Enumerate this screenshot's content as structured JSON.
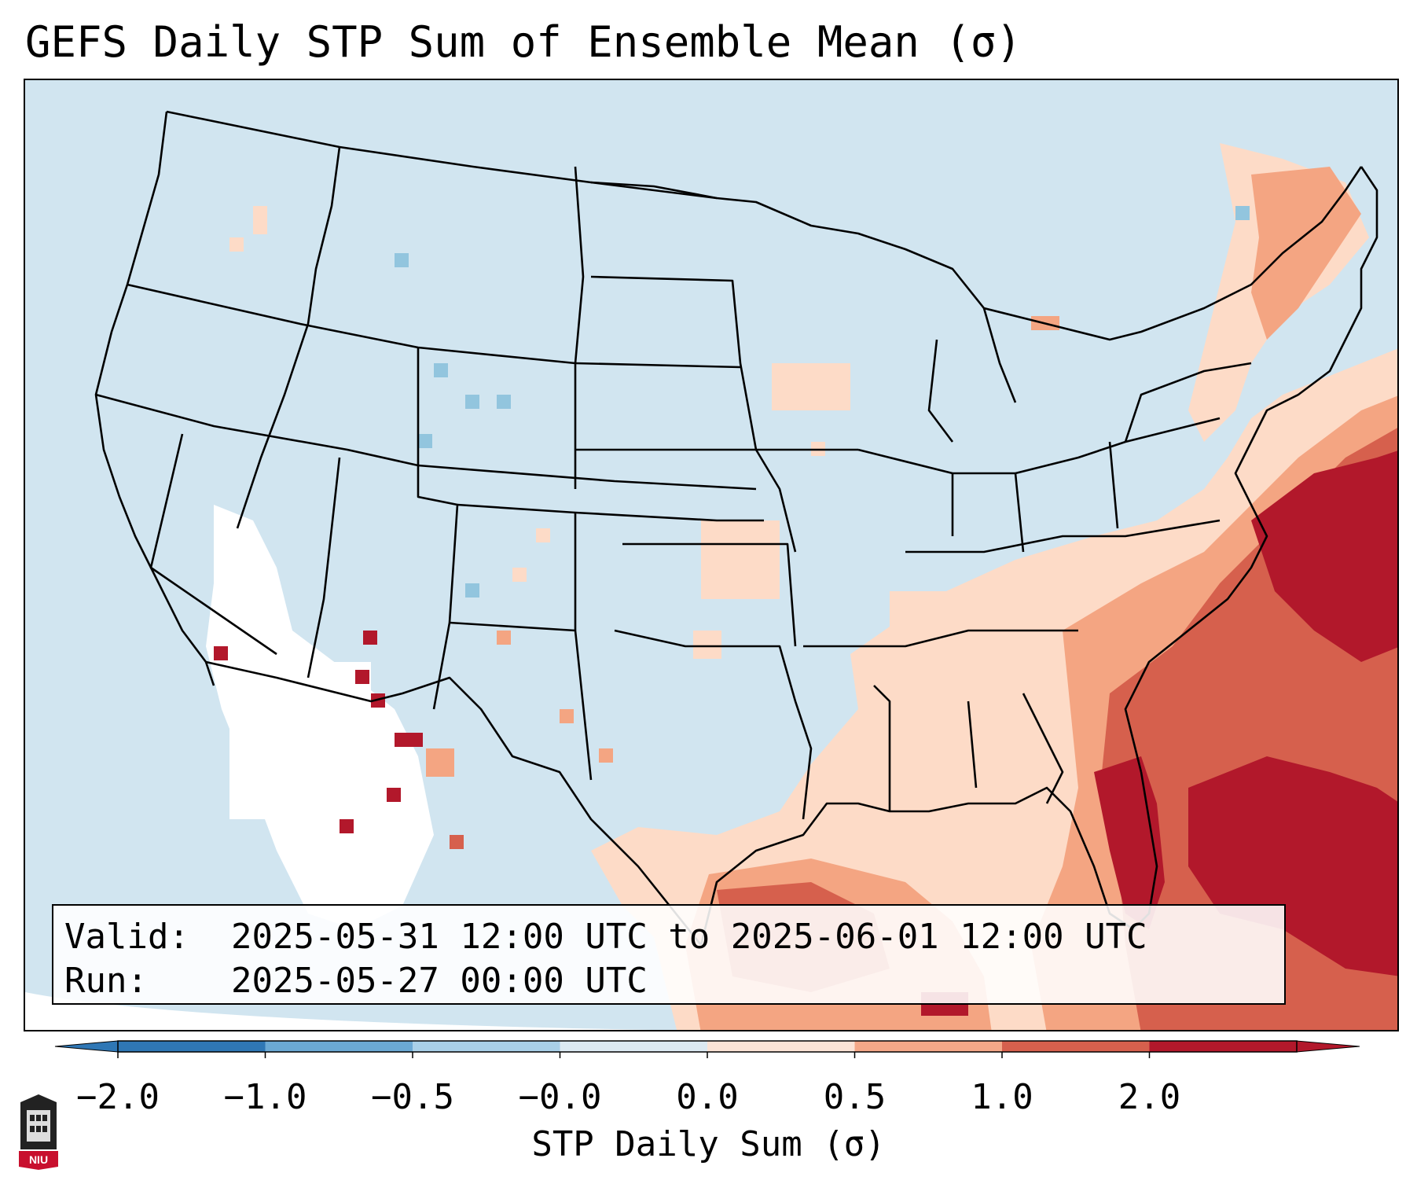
{
  "title": "GEFS Daily STP Sum of Ensemble Mean (σ)",
  "info": {
    "valid_label": "Valid:",
    "valid_value": "2025-05-31 12:00 UTC to 2025-06-01 12:00 UTC",
    "run_label": "Run:",
    "run_value": "2025-05-27 00:00 UTC"
  },
  "colorbar": {
    "label": "STP Daily Sum (σ)",
    "ticks": [
      "−2.0",
      "−1.0",
      "−0.5",
      "−0.0",
      "0.0",
      "0.5",
      "1.0",
      "2.0"
    ],
    "colors": [
      "#2f77b5",
      "#6ba9d4",
      "#a9d0e8",
      "#dce9f2",
      "#fbe3d6",
      "#f4a888",
      "#d6604d",
      "#b2182b"
    ],
    "extend": "both"
  },
  "colors": {
    "background_anomaly": "#d1e5f0",
    "outside_domain": "#ffffff",
    "neutral_low": "#ffffff",
    "slight_positive": "#fddbc7",
    "moderate_positive": "#f4a582",
    "strong_positive": "#d6604d",
    "extreme_positive": "#b2182b",
    "slight_negative": "#92c5de",
    "border_line": "#000000"
  },
  "logo": {
    "text": "NIU",
    "icon": "niu-university-logo-icon"
  },
  "map": {
    "description_regions": "CONUS map with state borders",
    "highlighted_area": "Southeast US, Gulf of Mexico and western Atlantic show positive STP anomalies"
  }
}
